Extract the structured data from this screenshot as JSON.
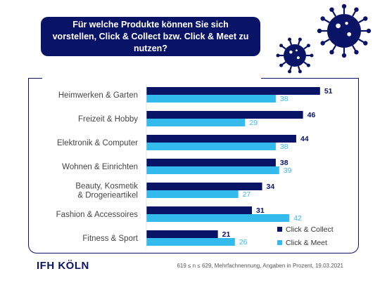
{
  "title": "Für welche Produkte können Sie sich vorstellen, Click & Collect bzw. Click & Meet zu nutzen?",
  "logo": "IFH KÖLN",
  "footnote": "619 ≤ n ≤ 629, Mehrfachnennung, Angaben in Prozent, 19.03.2021",
  "colors": {
    "click_collect": "#0a1466",
    "click_meet": "#33bbee",
    "frame": "#0a1466",
    "virus": "#0a1466"
  },
  "chart_data": {
    "type": "bar",
    "orientation": "horizontal",
    "categories": [
      [
        "Heimwerken & Garten"
      ],
      [
        "Freizeit & Hobby"
      ],
      [
        "Elektronik & Computer"
      ],
      [
        "Wohnen & Einrichten"
      ],
      [
        "Beauty, Kosmetik",
        "& Drogerieartikel"
      ],
      [
        "Fashion & Accessoires"
      ],
      [
        "Fitness & Sport"
      ]
    ],
    "series": [
      {
        "name": "Click & Collect",
        "values": [
          51,
          46,
          44,
          38,
          34,
          31,
          21
        ]
      },
      {
        "name": "Click & Meet",
        "values": [
          38,
          29,
          38,
          39,
          27,
          42,
          26
        ]
      }
    ],
    "legend_position": "bottom-right"
  }
}
